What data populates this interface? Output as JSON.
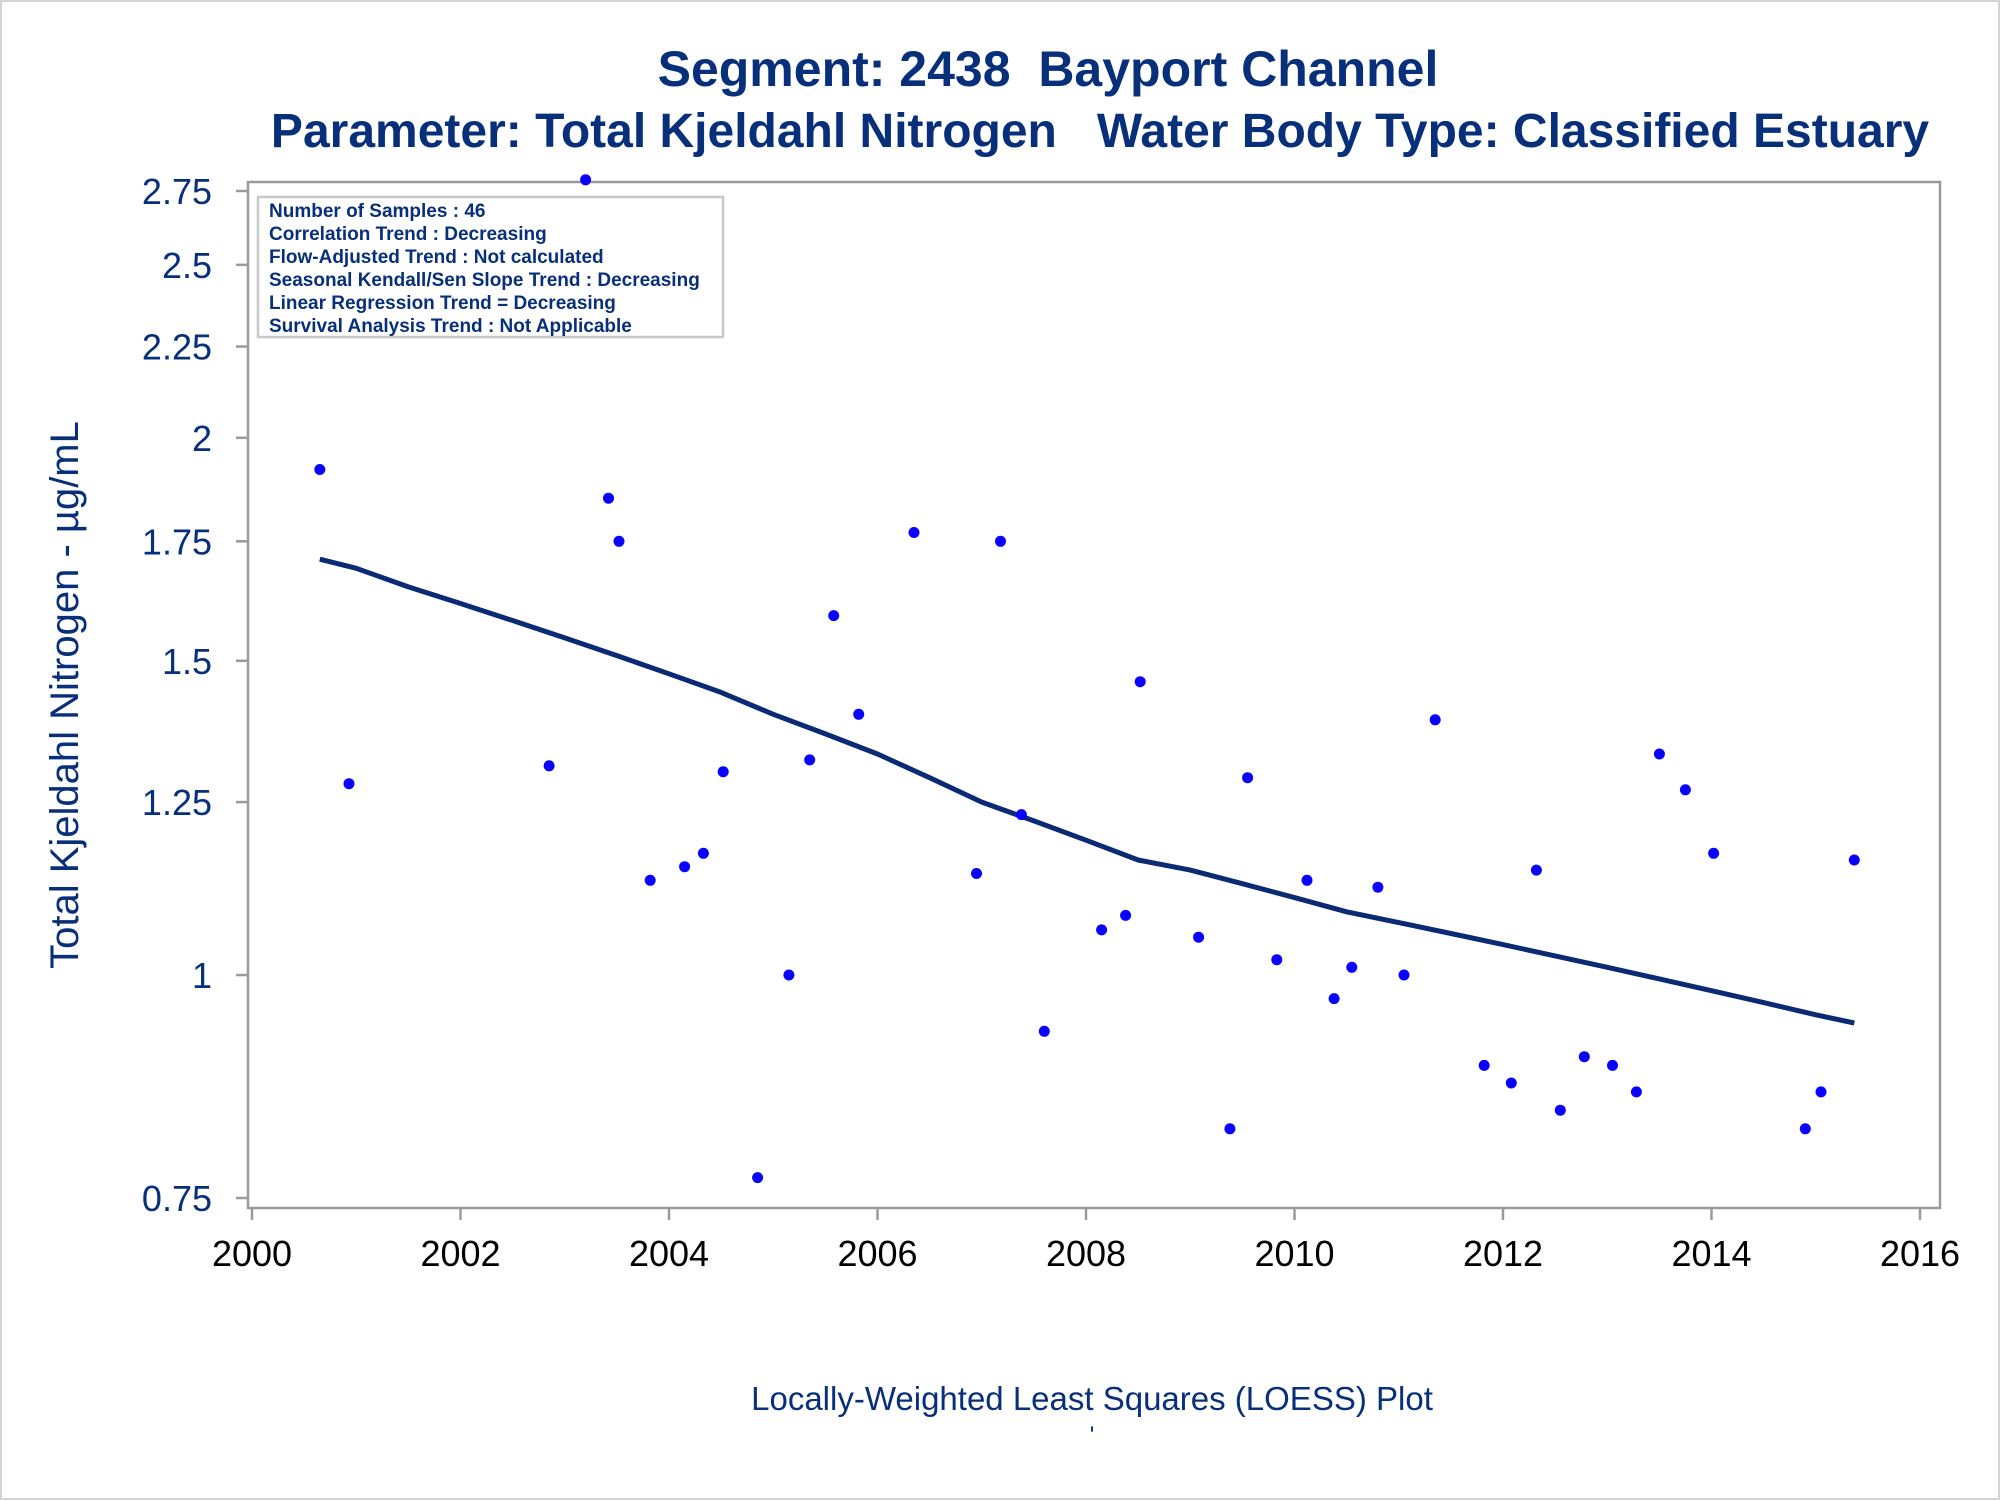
{
  "title_line1": "Segment: 2438  Bayport Channel",
  "title_line2": "Parameter: Total Kjeldahl Nitrogen   Water Body Type: Classified Estuary",
  "footnote": "Locally-Weighted Least Squares (LOESS) Plot",
  "footnote_mark": "'",
  "colors": {
    "text": "#082f7a",
    "points": "#0a00ff",
    "line": "#0a2a73",
    "axis": "#9a9a9a",
    "legend_border": "#c8c8c8"
  },
  "info_box": [
    "Number of Samples : 46",
    "Correlation Trend : Decreasing",
    "Flow-Adjusted Trend : Not calculated",
    "Seasonal Kendall/Sen Slope Trend : Decreasing",
    "Linear Regression Trend = Decreasing",
    "Survival Analysis Trend : Not Applicable"
  ],
  "chart_data": {
    "type": "scatter",
    "title": "Segment: 2438  Bayport Channel",
    "subtitle": "Parameter: Total Kjeldahl Nitrogen   Water Body Type: Classified Estuary",
    "xlabel": "",
    "ylabel": "Total Kjeldahl Nitrogen -  µg/mL",
    "xlim": [
      2000,
      2016
    ],
    "ylim": [
      0.75,
      2.8
    ],
    "yscale": "log",
    "xticks": [
      2000,
      2002,
      2004,
      2006,
      2008,
      2010,
      2012,
      2014,
      2016
    ],
    "yticks": [
      0.75,
      1,
      1.25,
      1.5,
      1.75,
      2,
      2.25,
      2.5,
      2.75
    ],
    "ytick_labels": [
      "0.75",
      "1",
      "1.25",
      "1.5",
      "1.75",
      "2",
      "2.25",
      "2.5",
      "2.75"
    ],
    "grid": false,
    "legend": "none",
    "series": [
      {
        "type": "scatter",
        "x": [
          2000.65,
          2000.93,
          2002.85,
          2003.2,
          2003.42,
          2003.52,
          2003.82,
          2004.15,
          2004.33,
          2004.52,
          2004.85,
          2005.15,
          2005.35,
          2005.58,
          2005.82,
          2006.35,
          2006.95,
          2007.18,
          2007.38,
          2007.6,
          2008.15,
          2008.38,
          2008.52,
          2009.08,
          2009.38,
          2009.55,
          2009.83,
          2010.12,
          2010.38,
          2010.55,
          2010.8,
          2011.05,
          2011.35,
          2011.82,
          2012.08,
          2012.32,
          2012.55,
          2012.78,
          2013.05,
          2013.28,
          2013.5,
          2013.75,
          2014.02,
          2014.9,
          2015.05,
          2015.37
        ],
        "y": [
          1.92,
          1.28,
          1.31,
          2.79,
          1.85,
          1.75,
          1.13,
          1.15,
          1.17,
          1.3,
          0.77,
          1.0,
          1.32,
          1.59,
          1.4,
          1.77,
          1.14,
          1.75,
          1.23,
          0.93,
          1.06,
          1.08,
          1.46,
          1.05,
          0.82,
          1.29,
          1.02,
          1.13,
          0.97,
          1.01,
          1.12,
          1.0,
          1.39,
          0.89,
          0.87,
          1.145,
          0.84,
          0.9,
          0.89,
          0.86,
          1.33,
          1.27,
          1.17,
          0.82,
          0.86,
          1.16
        ]
      },
      {
        "type": "line",
        "x": [
          2000.65,
          2001.0,
          2001.5,
          2002.0,
          2002.5,
          2003.0,
          2003.5,
          2004.0,
          2004.5,
          2005.0,
          2005.5,
          2006.0,
          2006.5,
          2007.0,
          2007.5,
          2008.0,
          2008.5,
          2009.0,
          2009.5,
          2010.0,
          2010.5,
          2011.0,
          2011.5,
          2012.0,
          2012.5,
          2013.0,
          2013.5,
          2014.0,
          2014.5,
          2015.0,
          2015.37
        ],
        "y": [
          1.71,
          1.69,
          1.65,
          1.615,
          1.58,
          1.545,
          1.51,
          1.475,
          1.44,
          1.4,
          1.365,
          1.33,
          1.29,
          1.25,
          1.22,
          1.19,
          1.16,
          1.145,
          1.125,
          1.105,
          1.085,
          1.07,
          1.055,
          1.04,
          1.025,
          1.01,
          0.995,
          0.98,
          0.965,
          0.95,
          0.94
        ]
      }
    ]
  }
}
